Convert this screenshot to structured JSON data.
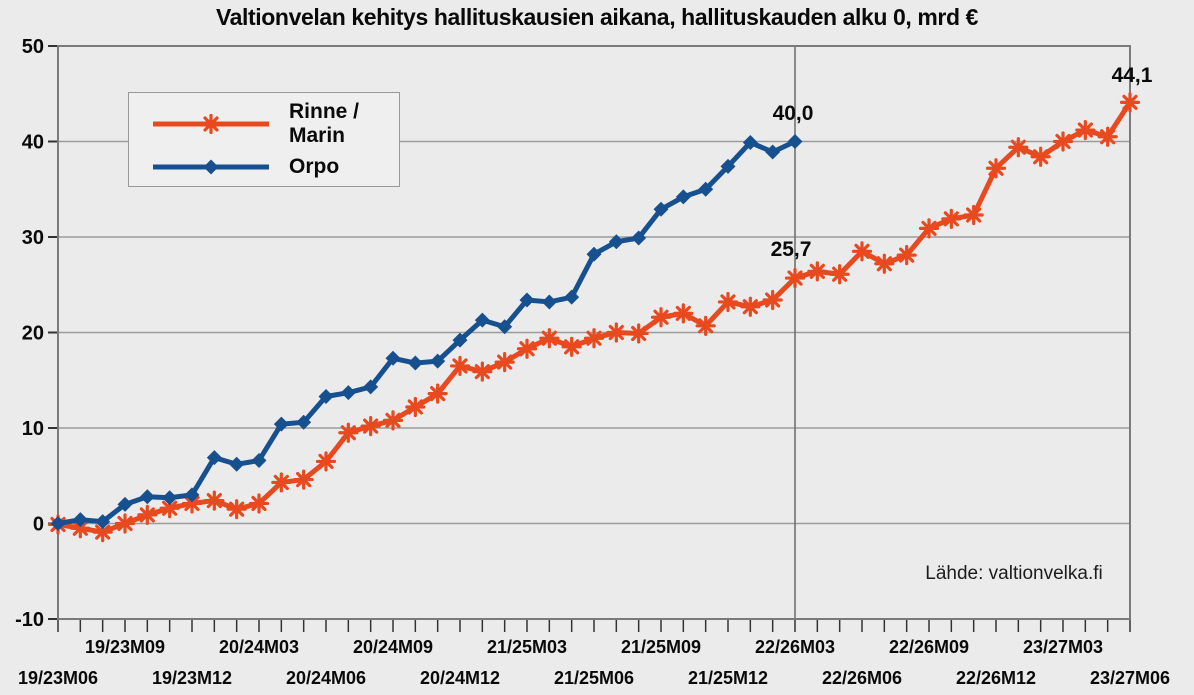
{
  "chart": {
    "title": "Valtionvelan kehitys hallituskausien aikana, hallituskauden alku 0, mrd €",
    "source_note": "Lähde: valtionvelka.fi"
  },
  "legend": {
    "entries": [
      {
        "label": "Rinne / Marin"
      },
      {
        "label": "Orpo"
      }
    ]
  },
  "chart_data": {
    "type": "line",
    "title": "Valtionvelan kehitys hallituskausien aikana, hallituskauden alku 0, mrd €",
    "ylabel": "mrd €",
    "ylim": [
      -10,
      50
    ],
    "y_ticks": [
      50,
      40,
      30,
      20,
      10,
      0,
      -10
    ],
    "grid": "horizontal",
    "legend_position": "upper-left",
    "x_unit": "month of government term, start = 0",
    "x_tick_count": 49,
    "x_labels_row1": [
      {
        "i": 3,
        "label": "19/23M09"
      },
      {
        "i": 9,
        "label": "20/24M03"
      },
      {
        "i": 15,
        "label": "20/24M09"
      },
      {
        "i": 21,
        "label": "21/25M03"
      },
      {
        "i": 27,
        "label": "21/25M09"
      },
      {
        "i": 33,
        "label": "22/26M03"
      },
      {
        "i": 39,
        "label": "22/26M09"
      },
      {
        "i": 45,
        "label": "23/27M03"
      }
    ],
    "x_labels_row2": [
      {
        "i": 0,
        "label": "19/23M06"
      },
      {
        "i": 6,
        "label": "19/23M12"
      },
      {
        "i": 12,
        "label": "20/24M06"
      },
      {
        "i": 18,
        "label": "20/24M12"
      },
      {
        "i": 24,
        "label": "21/25M06"
      },
      {
        "i": 30,
        "label": "21/25M12"
      },
      {
        "i": 36,
        "label": "22/26M06"
      },
      {
        "i": 42,
        "label": "22/26M12"
      },
      {
        "i": 48,
        "label": "23/27M06"
      }
    ],
    "vertical_marker_month_index": 33,
    "series": [
      {
        "name": "Rinne / Marin",
        "color": "#e8491f",
        "marker": "asterisk",
        "values": [
          -0.1,
          -0.5,
          -0.9,
          0.0,
          0.9,
          1.6,
          2.1,
          2.4,
          1.5,
          2.1,
          4.3,
          4.6,
          6.5,
          9.5,
          10.2,
          10.8,
          12.2,
          13.6,
          16.5,
          15.9,
          16.9,
          18.3,
          19.4,
          18.5,
          19.4,
          20.0,
          19.9,
          21.6,
          22.0,
          20.7,
          23.2,
          22.7,
          23.4,
          25.7,
          26.4,
          26.1,
          28.5,
          27.2,
          28.1,
          30.9,
          31.9,
          32.3,
          37.2,
          39.4,
          38.4,
          40.0,
          41.2,
          40.5,
          44.1
        ]
      },
      {
        "name": "Orpo",
        "color": "#17508f",
        "marker": "diamond",
        "values": [
          0.0,
          0.4,
          0.2,
          2.0,
          2.8,
          2.7,
          3.0,
          6.9,
          6.2,
          6.6,
          10.4,
          10.6,
          13.3,
          13.7,
          14.3,
          17.3,
          16.8,
          17.0,
          19.2,
          21.3,
          20.6,
          23.4,
          23.2,
          23.7,
          28.2,
          29.5,
          29.9,
          32.9,
          34.2,
          35.0,
          37.4,
          39.9,
          38.9,
          40.0
        ]
      }
    ],
    "annotations": [
      {
        "series": "Orpo",
        "month_index": 33,
        "value": 40.0,
        "label": "40,0"
      },
      {
        "series": "Rinne / Marin",
        "month_index": 33,
        "value": 25.7,
        "label": "25,7"
      },
      {
        "series": "Rinne / Marin",
        "month_index": 48,
        "value": 44.1,
        "label": "44,1"
      }
    ],
    "colors": {
      "background": "#ebebeb",
      "grid": "#9b9b9b",
      "border": "#7a7a7a",
      "axis": "#333333",
      "vertical_marker_line": "#6b6b6b",
      "text": "#0a0a0a"
    }
  }
}
